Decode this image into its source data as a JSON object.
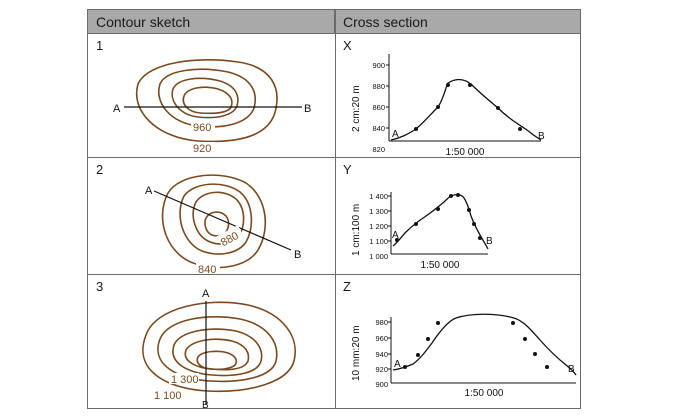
{
  "header": {
    "left": "Contour sketch",
    "right": "Cross section"
  },
  "colors": {
    "contour": "#7a4a1e",
    "line": "#111111",
    "header_bg": "#a9a9a9",
    "border": "#6b6b6b"
  },
  "rows": [
    {
      "number": "1",
      "letter": "X",
      "line_start": "A",
      "line_end": "B",
      "contour_labels": [
        "960",
        "920"
      ],
      "ylabel": "2 cm:20 m",
      "yticks": [
        "900",
        "880",
        "860",
        "840",
        "820"
      ],
      "xlabel": "1:50 000",
      "a_label": "A",
      "b_label": "B"
    },
    {
      "number": "2",
      "letter": "Y",
      "line_start": "A",
      "line_end": "B",
      "contour_labels": [
        "880",
        "840"
      ],
      "ylabel": "1 cm:100 m",
      "yticks": [
        "1 400",
        "1 300",
        "1 200",
        "1 100",
        "1 000"
      ],
      "xlabel": "1:50 000",
      "a_label": "A",
      "b_label": "B"
    },
    {
      "number": "3",
      "letter": "Z",
      "line_start": "A",
      "line_end": "B",
      "contour_labels": [
        "1 300",
        "1 100"
      ],
      "ylabel": "10 mm:20 m",
      "yticks": [
        "980",
        "960",
        "940",
        "920",
        "900"
      ],
      "xlabel": "1:50 000",
      "a_label": "A",
      "b_label": "B"
    }
  ]
}
